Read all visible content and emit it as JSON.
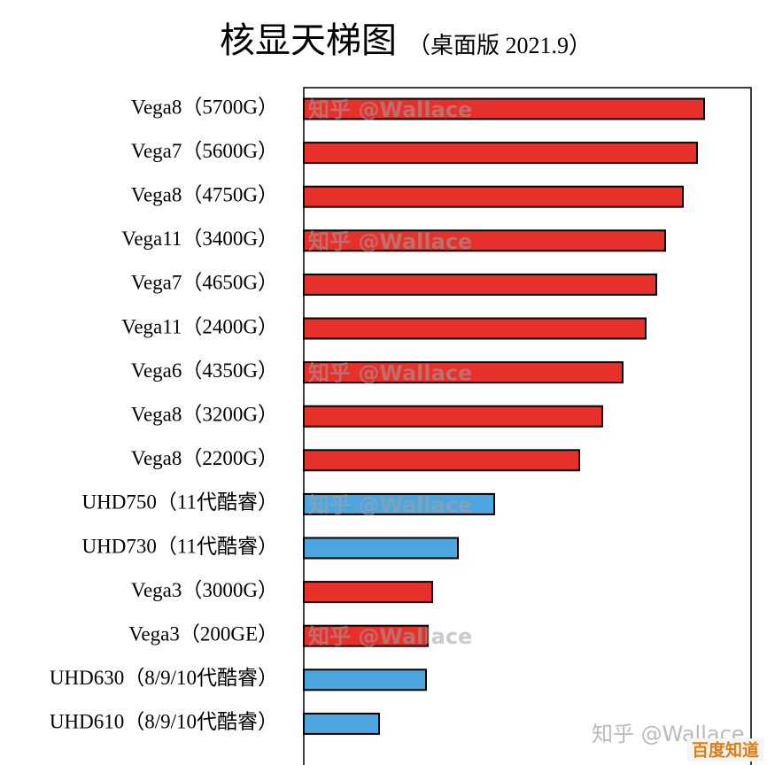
{
  "chart_data": {
    "type": "bar",
    "orientation": "horizontal",
    "title": "核显天梯图",
    "subtitle": "（桌面版 2021.9）",
    "categories": [
      "Vega8（5700G）",
      "Vega7（5600G）",
      "Vega8（4750G）",
      "Vega11（3400G）",
      "Vega7（4650G）",
      "Vega11（2400G）",
      "Vega6（4350G）",
      "Vega8（3200G）",
      "Vega8（2200G）",
      "UHD750（11代酷睿）",
      "UHD730（11代酷睿）",
      "Vega3（3000G）",
      "Vega3（200GE）",
      "UHD630（8/9/10代酷睿）",
      "UHD610（8/9/10代酷睿）"
    ],
    "values": [
      452,
      444,
      428,
      408,
      398,
      386,
      360,
      337,
      311,
      215,
      174,
      145,
      140,
      138,
      85
    ],
    "colors": [
      "#e8302a",
      "#e8302a",
      "#e8302a",
      "#e8302a",
      "#e8302a",
      "#e8302a",
      "#e8302a",
      "#e8302a",
      "#e8302a",
      "#4ea6e0",
      "#4ea6e0",
      "#e8302a",
      "#e8302a",
      "#4ea6e0",
      "#4ea6e0"
    ],
    "xlim": [
      0,
      505
    ],
    "watermark": "知乎 @Wallace",
    "logo": "百度知道"
  }
}
